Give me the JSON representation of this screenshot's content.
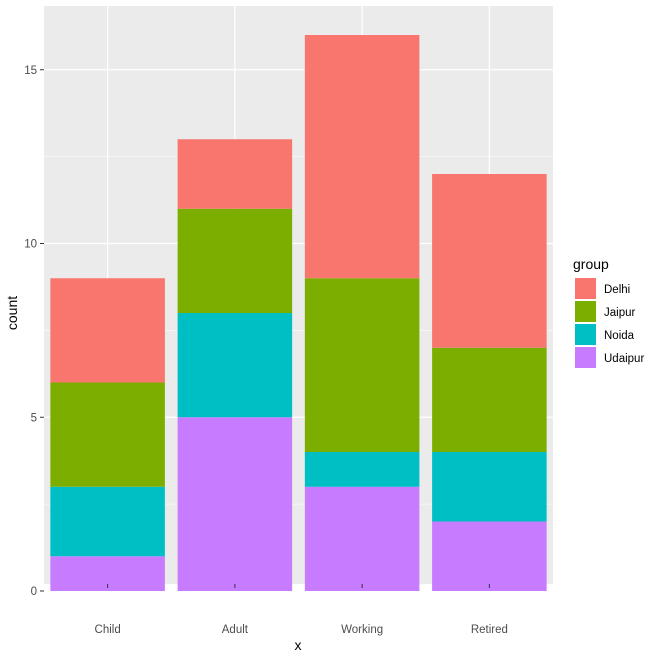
{
  "chart_data": {
    "type": "bar",
    "stacked": true,
    "xlabel": "x",
    "ylabel": "count",
    "categories": [
      "Child",
      "Adult",
      "Working",
      "Retired"
    ],
    "ylim": [
      0,
      16.75
    ],
    "yticks": [
      0,
      5,
      10,
      15
    ],
    "grid": true,
    "legend": {
      "title": "group",
      "position": "right"
    },
    "series": [
      {
        "name": "Delhi",
        "color": "#F8766D",
        "values": [
          3,
          2,
          7,
          5
        ]
      },
      {
        "name": "Jaipur",
        "color": "#7CAE00",
        "values": [
          3,
          3,
          5,
          3
        ]
      },
      {
        "name": "Noida",
        "color": "#00BFC4",
        "values": [
          2,
          3,
          1,
          2
        ]
      },
      {
        "name": "Udaipur",
        "color": "#C77CFF",
        "values": [
          1,
          5,
          3,
          2
        ]
      }
    ],
    "stack_order_bottom_to_top": [
      "Udaipur",
      "Noida",
      "Jaipur",
      "Delhi"
    ]
  },
  "colors": {
    "panel_background": "#EBEBEB",
    "grid_major": "#FFFFFF",
    "text_axis": "#4D4D4D",
    "text_title": "#000000"
  }
}
